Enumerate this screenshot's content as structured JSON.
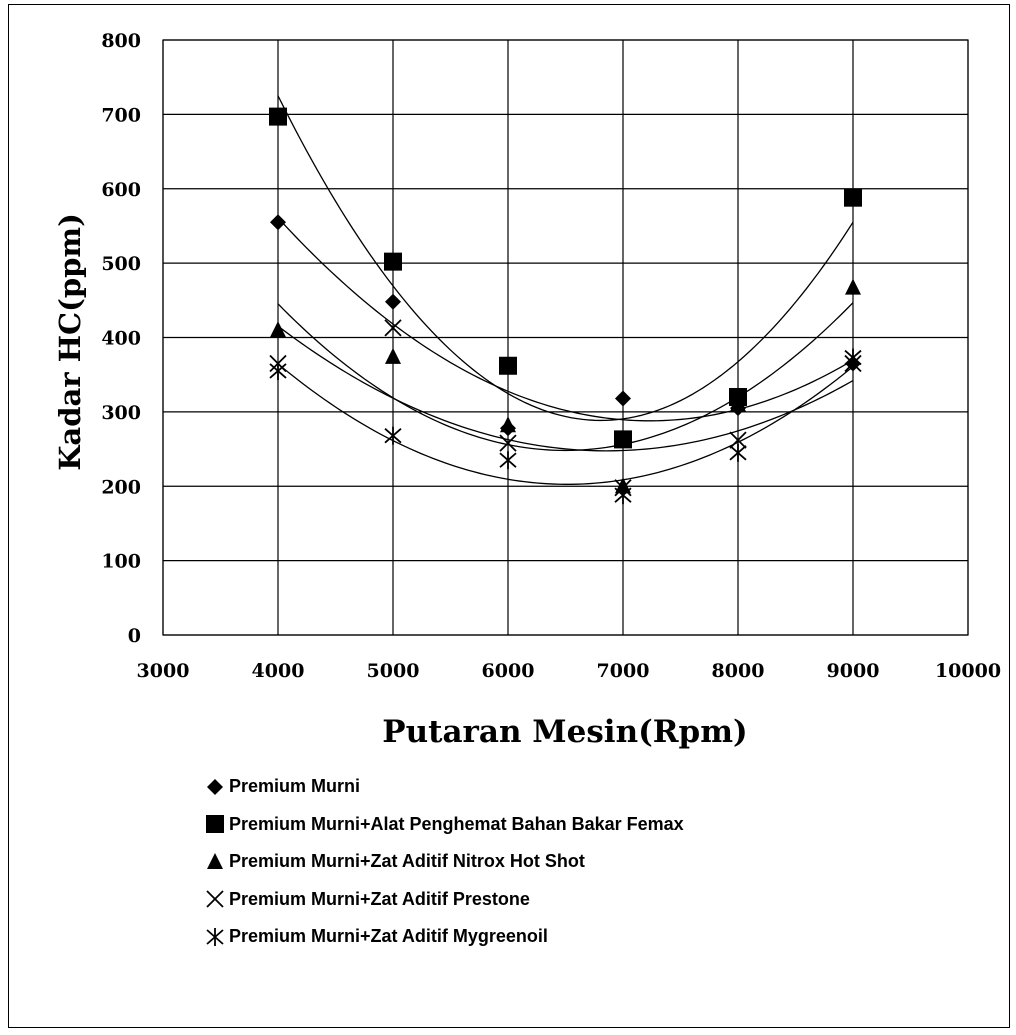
{
  "chart_data": {
    "type": "scatter",
    "title": "",
    "xlabel": "Putaran Mesin(Rpm)",
    "ylabel": "Kadar HC(ppm)",
    "xlim": [
      3000,
      10000
    ],
    "ylim": [
      0,
      800
    ],
    "x_ticks": [
      3000,
      4000,
      5000,
      6000,
      7000,
      8000,
      9000,
      10000
    ],
    "y_ticks": [
      0,
      100,
      200,
      300,
      400,
      500,
      600,
      700,
      800
    ],
    "grid": true,
    "legend_position": "bottom",
    "trendline": "polynomial order 2",
    "x": [
      4000,
      5000,
      6000,
      7000,
      8000,
      9000
    ],
    "series": [
      {
        "name": "Premium Murni",
        "marker": "diamond",
        "values": [
          555,
          448,
          278,
          318,
          305,
          365
        ]
      },
      {
        "name": "Premium Murni+Alat Penghemat Bahan Bakar  Femax",
        "marker": "square",
        "values": [
          697,
          502,
          362,
          263,
          320,
          588
        ]
      },
      {
        "name": "Premium Murni+Zat Aditif  Nitrox Hot Shot",
        "marker": "triangle",
        "values": [
          410,
          374,
          282,
          200,
          310,
          467
        ]
      },
      {
        "name": "Premium Murni+Zat Aditif Prestone",
        "marker": "x",
        "values": [
          365,
          413,
          258,
          198,
          262,
          365
        ]
      },
      {
        "name": "Premium Murni+Zat Aditif Mygreenoil",
        "marker": "asterisk",
        "values": [
          355,
          268,
          235,
          188,
          245,
          373
        ]
      }
    ]
  }
}
